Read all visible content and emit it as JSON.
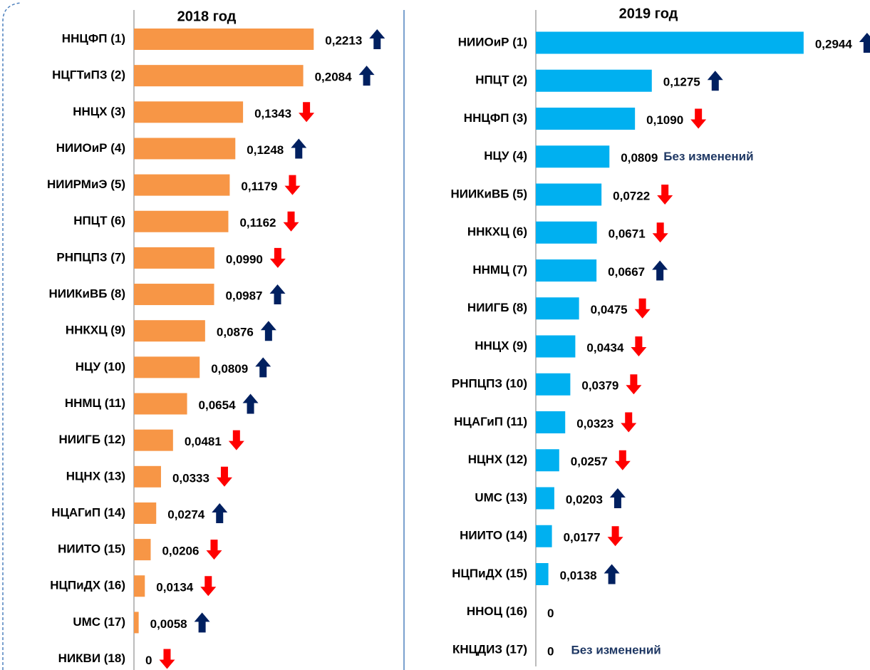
{
  "chart_data": [
    {
      "type": "barh",
      "title": "2018 год",
      "color": "#f79646",
      "xlim": [
        0,
        0.25
      ],
      "categories": [
        "ННЦФП (1)",
        "НЦГТиПЗ (2)",
        "ННЦХ (3)",
        "НИИОиР (4)",
        "НИИРМиЭ (5)",
        "НПЦТ (6)",
        "РНПЦПЗ (7)",
        "НИИКиВБ (8)",
        "ННКХЦ (9)",
        "НЦУ (10)",
        "ННМЦ (11)",
        "НИИГБ (12)",
        "НЦНХ (13)",
        "НЦАГиП (14)",
        "НИИТО (15)",
        "НЦПиДХ (16)",
        "UMC (17)",
        "НИКВИ (18)"
      ],
      "values": [
        0.2213,
        0.2084,
        0.1343,
        0.1248,
        0.1179,
        0.1162,
        0.099,
        0.0987,
        0.0876,
        0.0809,
        0.0654,
        0.0481,
        0.0333,
        0.0274,
        0.0206,
        0.0134,
        0.0058,
        0
      ],
      "value_labels": [
        "0,2213",
        "0,2084",
        "0,1343",
        "0,1248",
        "0,1179",
        "0,1162",
        "0,0990",
        "0,0987",
        "0,0876",
        "0,0809",
        "0,0654",
        "0,0481",
        "0,0333",
        "0,0274",
        "0,0206",
        "0,0134",
        "0,0058",
        "0"
      ],
      "trends": [
        "up",
        "up",
        "down",
        "up",
        "down",
        "down",
        "down",
        "up",
        "up",
        "up",
        "up",
        "down",
        "down",
        "up",
        "down",
        "down",
        "up",
        "down"
      ]
    },
    {
      "type": "barh",
      "title": "2019 год",
      "color": "#00b0f0",
      "xlim": [
        0,
        0.3
      ],
      "categories": [
        "НИИОиР (1)",
        "НПЦТ (2)",
        "ННЦФП (3)",
        "НЦУ (4)",
        "НИИКиВБ (5)",
        "ННКХЦ (6)",
        "ННМЦ (7)",
        "НИИГБ (8)",
        "ННЦХ (9)",
        "РНПЦПЗ (10)",
        "НЦАГиП (11)",
        "НЦНХ (12)",
        "UMC (13)",
        "НИИТО (14)",
        "НЦПиДХ (15)",
        "ННОЦ (16)",
        "КНЦДИЗ (17)"
      ],
      "values": [
        0.2944,
        0.1275,
        0.109,
        0.0809,
        0.0722,
        0.0671,
        0.0667,
        0.0475,
        0.0434,
        0.0379,
        0.0323,
        0.0257,
        0.0203,
        0.0177,
        0.0138,
        0,
        0
      ],
      "value_labels": [
        "0,2944",
        "0,1275",
        "0,1090",
        "0,0809",
        "0,0722",
        "0,0671",
        "0,0667",
        "0,0475",
        "0,0434",
        "0,0379",
        "0,0323",
        "0,0257",
        "0,0203",
        "0,0177",
        "0,0138",
        "0",
        "0"
      ],
      "trends": [
        "up",
        "up",
        "down",
        "Без изменений",
        "down",
        "down",
        "up",
        "down",
        "down",
        "down",
        "down",
        "down",
        "up",
        "down",
        "up",
        null,
        "Без изменений"
      ]
    }
  ]
}
